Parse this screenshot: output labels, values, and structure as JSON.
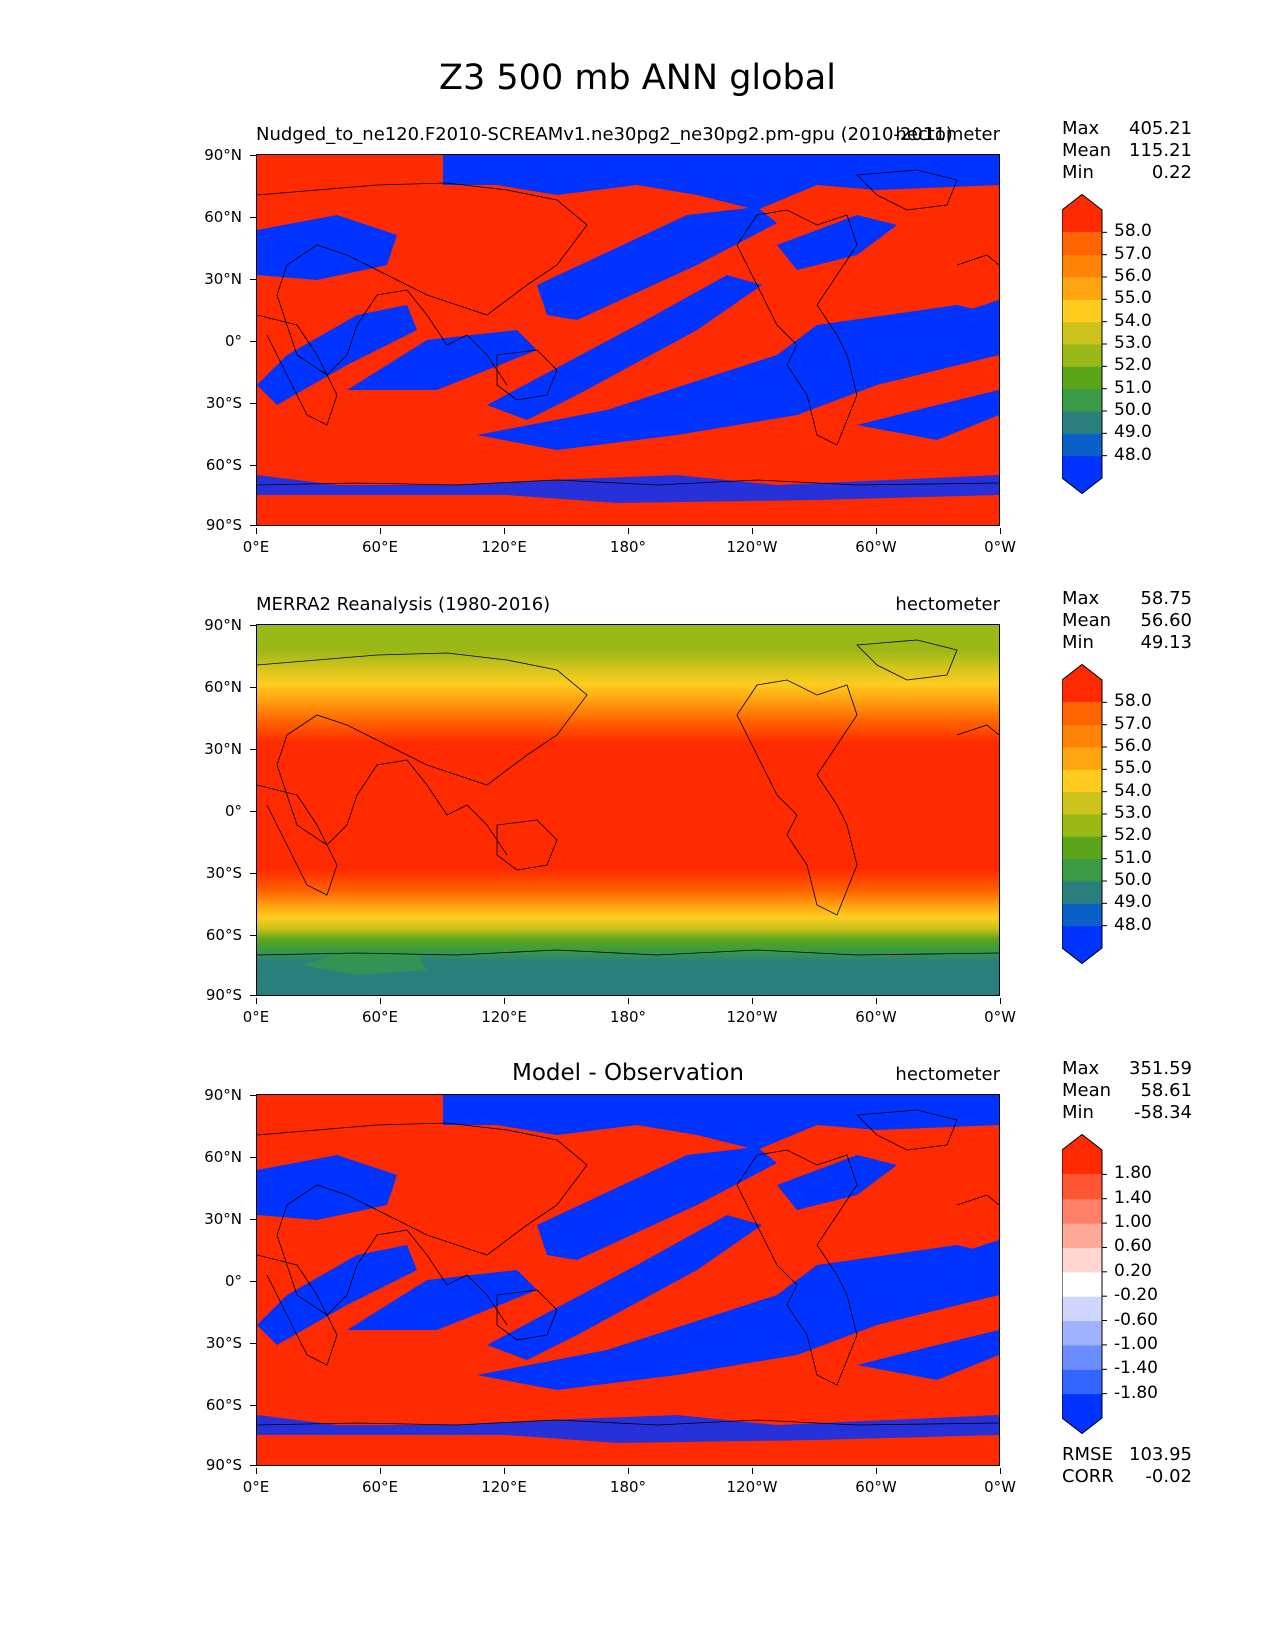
{
  "figure_title": "Z3 500 mb ANN global",
  "chart_data": [
    {
      "type": "heatmap",
      "panel": "model",
      "title_left": "Nudged_to_ne120.F2010-SCREAMv1.ne30pg2_ne30pg2.pm-gpu (2010-2011)",
      "title_right": "hectometer",
      "units": "hectometer",
      "xlim": [
        0,
        360
      ],
      "ylim": [
        -90,
        90
      ],
      "xticks": [
        "0°E",
        "60°E",
        "120°E",
        "180°",
        "120°W",
        "60°W",
        "0°W"
      ],
      "yticks": [
        "90°N",
        "60°N",
        "30°N",
        "0°",
        "30°S",
        "60°S",
        "90°S"
      ],
      "stats": {
        "max": "405.21",
        "mean": "115.21",
        "min": "0.22"
      },
      "colorbar_levels": [
        "58.0",
        "57.0",
        "56.0",
        "55.0",
        "54.0",
        "53.0",
        "52.0",
        "51.0",
        "50.0",
        "49.0",
        "48.0"
      ],
      "dominant_value_ranges": [
        "> 58.0 (red)",
        "< 48.0 (blue)"
      ]
    },
    {
      "type": "heatmap",
      "panel": "observation",
      "title_left": "MERRA2 Reanalysis (1980-2016)",
      "title_right": "hectometer",
      "units": "hectometer",
      "xlim": [
        0,
        360
      ],
      "ylim": [
        -90,
        90
      ],
      "xticks": [
        "0°E",
        "60°E",
        "120°E",
        "180°",
        "120°W",
        "60°W",
        "0°W"
      ],
      "yticks": [
        "90°N",
        "60°N",
        "30°N",
        "0°",
        "30°S",
        "60°S",
        "90°S"
      ],
      "stats": {
        "max": "58.75",
        "mean": "56.60",
        "min": "49.13"
      },
      "colorbar_levels": [
        "58.0",
        "57.0",
        "56.0",
        "55.0",
        "54.0",
        "53.0",
        "52.0",
        "51.0",
        "50.0",
        "49.0",
        "48.0"
      ],
      "zonal_profile_lat": [
        90,
        75,
        62,
        55,
        48,
        40,
        30,
        0,
        -30,
        -38,
        -45,
        -52,
        -58,
        -64,
        -70,
        -90
      ],
      "zonal_profile_value": [
        52.5,
        52.8,
        54.0,
        55.0,
        56.0,
        57.0,
        58.2,
        58.5,
        58.2,
        57.0,
        55.8,
        54.5,
        53.0,
        51.5,
        49.5,
        49.3
      ]
    },
    {
      "type": "heatmap",
      "panel": "difference",
      "title_center": "Model - Observation",
      "title_right": "hectometer",
      "units": "hectometer",
      "xlim": [
        0,
        360
      ],
      "ylim": [
        -90,
        90
      ],
      "xticks": [
        "0°E",
        "60°E",
        "120°E",
        "180°",
        "120°W",
        "60°W",
        "0°W"
      ],
      "yticks": [
        "90°N",
        "60°N",
        "30°N",
        "0°",
        "30°S",
        "60°S",
        "90°S"
      ],
      "stats": {
        "max": "351.59",
        "mean": "58.61",
        "min": "-58.34"
      },
      "colorbar_levels": [
        "1.80",
        "1.40",
        "1.00",
        "0.60",
        "0.20",
        "-0.20",
        "-0.60",
        "-1.00",
        "-1.40",
        "-1.80"
      ],
      "rmse": "103.95",
      "corr": "-0.02"
    }
  ],
  "labels": {
    "max": "Max",
    "mean": "Mean",
    "min": "Min",
    "rmse": "RMSE",
    "corr": "CORR"
  },
  "colors": {
    "model_cmap": [
      "#0033ff",
      "#0a5fc8",
      "#2a7f7c",
      "#3a9a45",
      "#5aa51a",
      "#9ab816",
      "#ccc31c",
      "#ffcc1f",
      "#ffa512",
      "#ff8408",
      "#ff6400",
      "#ff2a00"
    ],
    "diff_cmap": [
      "#0033ff",
      "#3366ff",
      "#6a8cff",
      "#a0b1ff",
      "#cfd7ff",
      "#ffffff",
      "#ffd6d0",
      "#ffa898",
      "#ff8066",
      "#ff5533",
      "#ff2a00"
    ]
  }
}
